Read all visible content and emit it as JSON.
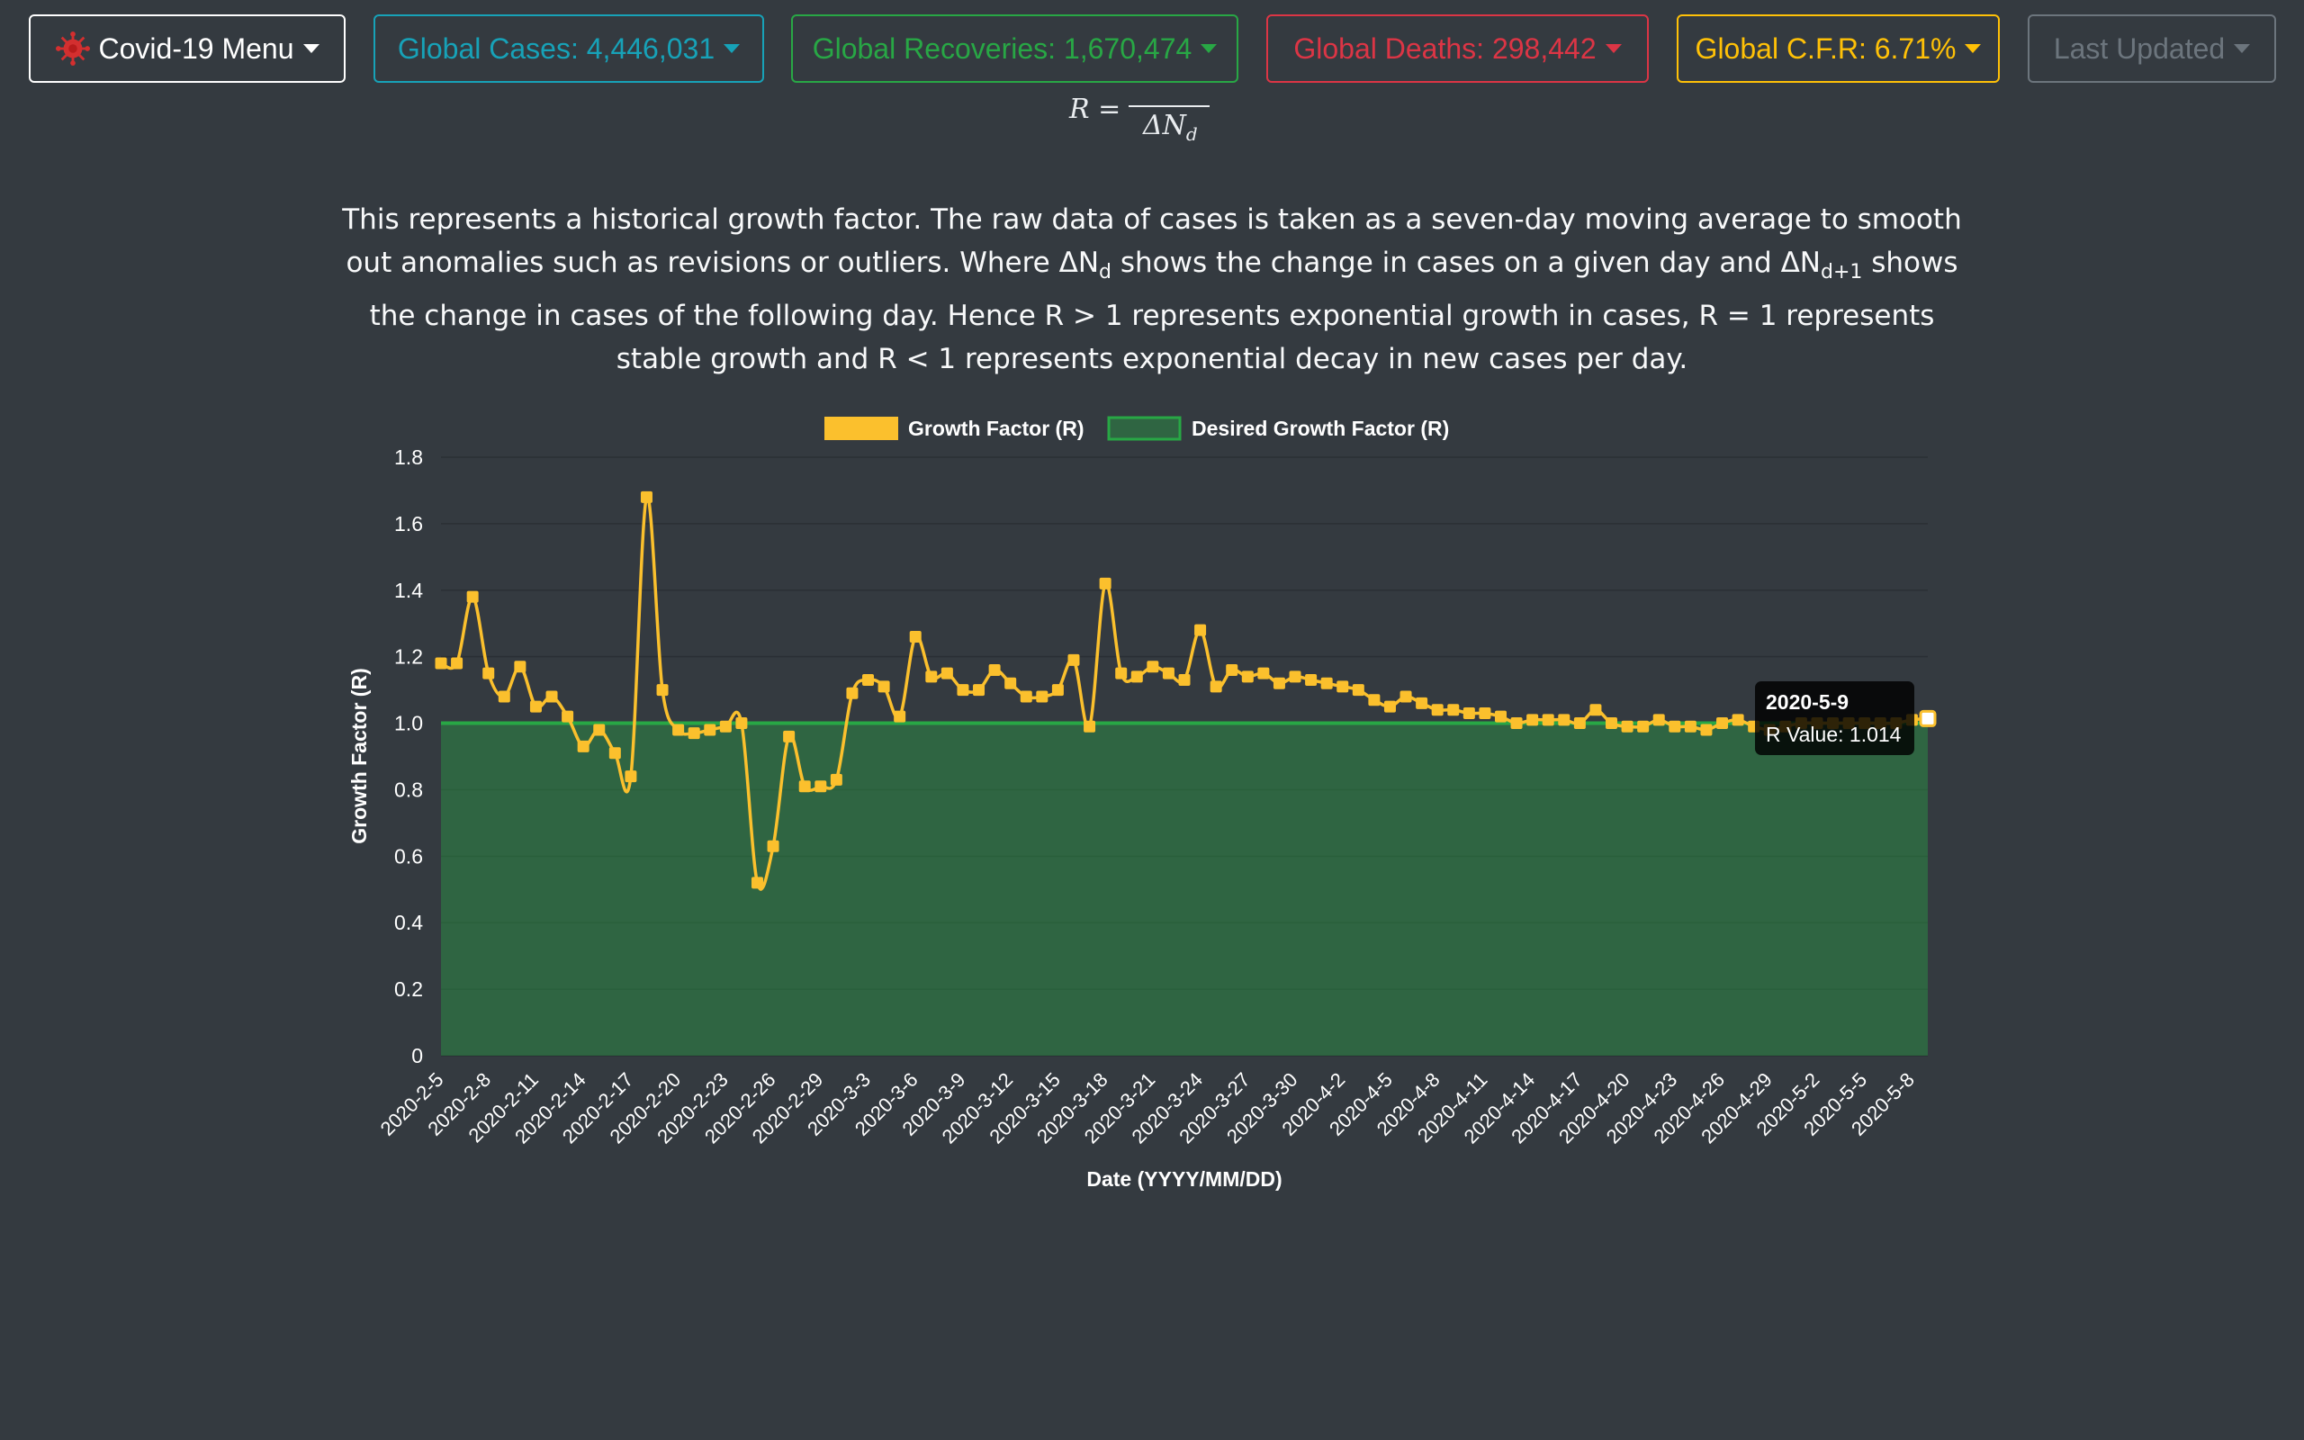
{
  "navbar": {
    "menu_label": "Covid-19 Menu",
    "cases_label": "Global Cases: 4,446,031",
    "recoveries_label": "Global Recoveries: 1,670,474",
    "deaths_label": "Global Deaths: 298,442",
    "cfr_label": "Global C.F.R: 6.71%",
    "updated_label": "Last Updated",
    "icons": {
      "menu": "virus-icon",
      "dropdown": "caret-down-icon"
    },
    "colors": {
      "menu": "#ffffff",
      "cases": "#17a2b8",
      "recoveries": "#28a745",
      "deaths": "#dc3545",
      "cfr": "#ffc107",
      "updated": "#6c757d"
    }
  },
  "formula": {
    "lhs": "R =",
    "den_symbol": "ΔN",
    "den_sub": "d"
  },
  "description": {
    "part1": "This represents a historical growth factor. The raw data of cases is taken as a seven-day moving average to smooth out anomalies such as revisions or outliers. Where ",
    "dn1": "ΔN",
    "dn1_sub": "d",
    "part2": " shows the change in cases on a given day and ",
    "dn2": "ΔN",
    "dn2_sub": "d+1",
    "part3": " shows the change in cases of the following day. Hence R > 1 represents exponential growth in cases, R = 1 represents stable growth and R < 1 represents exponential decay in new cases per day."
  },
  "chart_data": {
    "type": "line",
    "xlabel": "Date (YYYY/MM/DD)",
    "ylabel": "Growth Factor (R)",
    "ylim": [
      0,
      1.8
    ],
    "y_ticks": [
      "0",
      "0.2",
      "0.4",
      "0.6",
      "0.8",
      "1.0",
      "1.2",
      "1.4",
      "1.6",
      "1.8"
    ],
    "legend_position": "top",
    "grid": true,
    "x_tick_labels": [
      "2020-2-5",
      "2020-2-8",
      "2020-2-11",
      "2020-2-14",
      "2020-2-17",
      "2020-2-20",
      "2020-2-23",
      "2020-2-26",
      "2020-2-29",
      "2020-3-3",
      "2020-3-6",
      "2020-3-9",
      "2020-3-12",
      "2020-3-15",
      "2020-3-18",
      "2020-3-21",
      "2020-3-24",
      "2020-3-27",
      "2020-3-30",
      "2020-4-2",
      "2020-4-5",
      "2020-4-8",
      "2020-4-11",
      "2020-4-14",
      "2020-4-17",
      "2020-4-20",
      "2020-4-23",
      "2020-4-26",
      "2020-4-29",
      "2020-5-2",
      "2020-5-5",
      "2020-5-8"
    ],
    "dates": [
      "2020-2-5",
      "2020-2-6",
      "2020-2-7",
      "2020-2-8",
      "2020-2-9",
      "2020-2-10",
      "2020-2-11",
      "2020-2-12",
      "2020-2-13",
      "2020-2-14",
      "2020-2-15",
      "2020-2-16",
      "2020-2-17",
      "2020-2-18",
      "2020-2-19",
      "2020-2-20",
      "2020-2-21",
      "2020-2-22",
      "2020-2-23",
      "2020-2-24",
      "2020-2-25",
      "2020-2-26",
      "2020-2-27",
      "2020-2-28",
      "2020-2-29",
      "2020-3-1",
      "2020-3-2",
      "2020-3-3",
      "2020-3-4",
      "2020-3-5",
      "2020-3-6",
      "2020-3-7",
      "2020-3-8",
      "2020-3-9",
      "2020-3-10",
      "2020-3-11",
      "2020-3-12",
      "2020-3-13",
      "2020-3-14",
      "2020-3-15",
      "2020-3-16",
      "2020-3-17",
      "2020-3-18",
      "2020-3-19",
      "2020-3-20",
      "2020-3-21",
      "2020-3-22",
      "2020-3-23",
      "2020-3-24",
      "2020-3-25",
      "2020-3-26",
      "2020-3-27",
      "2020-3-28",
      "2020-3-29",
      "2020-3-30",
      "2020-3-31",
      "2020-4-1",
      "2020-4-2",
      "2020-4-3",
      "2020-4-4",
      "2020-4-5",
      "2020-4-6",
      "2020-4-7",
      "2020-4-8",
      "2020-4-9",
      "2020-4-10",
      "2020-4-11",
      "2020-4-12",
      "2020-4-13",
      "2020-4-14",
      "2020-4-15",
      "2020-4-16",
      "2020-4-17",
      "2020-4-18",
      "2020-4-19",
      "2020-4-20",
      "2020-4-21",
      "2020-4-22",
      "2020-4-23",
      "2020-4-24",
      "2020-4-25",
      "2020-4-26",
      "2020-4-27",
      "2020-4-28",
      "2020-4-29",
      "2020-4-30",
      "2020-5-1",
      "2020-5-2",
      "2020-5-3",
      "2020-5-4",
      "2020-5-5",
      "2020-5-6",
      "2020-5-7",
      "2020-5-8",
      "2020-5-9"
    ],
    "series": [
      {
        "name": "Growth Factor (R)",
        "color": "#fbc02d",
        "values": [
          1.18,
          1.18,
          1.38,
          1.15,
          1.08,
          1.17,
          1.05,
          1.08,
          1.02,
          0.93,
          0.98,
          0.91,
          0.84,
          1.68,
          1.1,
          0.98,
          0.97,
          0.98,
          0.99,
          1.0,
          0.52,
          0.63,
          0.96,
          0.81,
          0.81,
          0.83,
          1.09,
          1.13,
          1.11,
          1.02,
          1.26,
          1.14,
          1.15,
          1.1,
          1.1,
          1.16,
          1.12,
          1.08,
          1.08,
          1.1,
          1.19,
          0.99,
          1.42,
          1.15,
          1.14,
          1.17,
          1.15,
          1.13,
          1.28,
          1.11,
          1.16,
          1.14,
          1.15,
          1.12,
          1.14,
          1.13,
          1.12,
          1.11,
          1.1,
          1.07,
          1.05,
          1.08,
          1.06,
          1.04,
          1.04,
          1.03,
          1.03,
          1.02,
          1.0,
          1.01,
          1.01,
          1.01,
          1.0,
          1.04,
          1.0,
          0.99,
          0.99,
          1.01,
          0.99,
          0.99,
          0.98,
          1.0,
          1.01,
          0.99,
          0.98,
          0.99,
          1.0,
          1.0,
          1.0,
          1.0,
          1.0,
          1.0,
          1.0,
          1.01,
          1.014
        ]
      },
      {
        "name": "Desired Growth Factor (R)",
        "color": "#28a745",
        "values": [
          1.0,
          1.0,
          1.0,
          1.0,
          1.0,
          1.0,
          1.0,
          1.0,
          1.0,
          1.0,
          1.0,
          1.0,
          1.0,
          1.0,
          1.0,
          1.0,
          1.0,
          1.0,
          1.0,
          1.0,
          1.0,
          1.0,
          1.0,
          1.0,
          1.0,
          1.0,
          1.0,
          1.0,
          1.0,
          1.0,
          1.0,
          1.0,
          1.0,
          1.0,
          1.0,
          1.0,
          1.0,
          1.0,
          1.0,
          1.0,
          1.0,
          1.0,
          1.0,
          1.0,
          1.0,
          1.0,
          1.0,
          1.0,
          1.0,
          1.0,
          1.0,
          1.0,
          1.0,
          1.0,
          1.0,
          1.0,
          1.0,
          1.0,
          1.0,
          1.0,
          1.0,
          1.0,
          1.0,
          1.0,
          1.0,
          1.0,
          1.0,
          1.0,
          1.0,
          1.0,
          1.0,
          1.0,
          1.0,
          1.0,
          1.0,
          1.0,
          1.0,
          1.0,
          1.0,
          1.0,
          1.0,
          1.0,
          1.0,
          1.0,
          1.0,
          1.0,
          1.0,
          1.0,
          1.0,
          1.0,
          1.0,
          1.0,
          1.0,
          1.0,
          1.0
        ]
      }
    ],
    "tooltip": {
      "title": "2020-5-9",
      "label": "R Value: 1.014",
      "index": 94
    }
  }
}
